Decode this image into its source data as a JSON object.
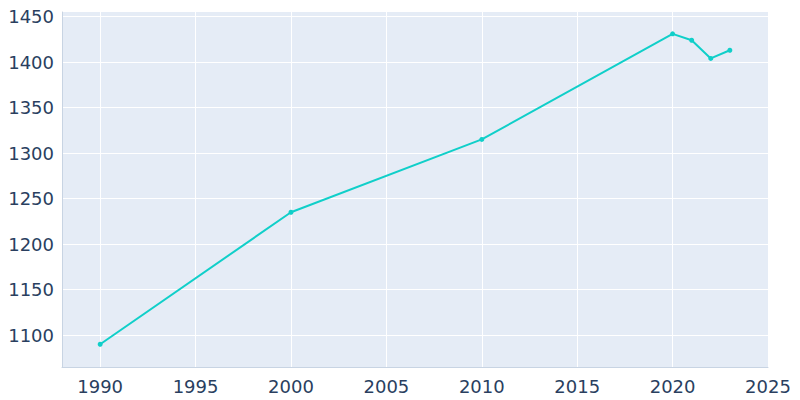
{
  "chart_data": {
    "type": "line",
    "x": [
      1990,
      2000,
      2010,
      2020,
      2021,
      2022,
      2023
    ],
    "values": [
      1090,
      1235,
      1315,
      1431,
      1424,
      1404,
      1413
    ],
    "color": "#10cfc9",
    "marker": "circle",
    "xlim": [
      1988,
      2025
    ],
    "xticks": [
      1990,
      1995,
      2000,
      2005,
      2010,
      2015,
      2020,
      2025
    ],
    "ylim": [
      1065,
      1455
    ],
    "yticks": [
      1100,
      1150,
      1200,
      1250,
      1300,
      1350,
      1400,
      1450
    ],
    "grid": true
  }
}
